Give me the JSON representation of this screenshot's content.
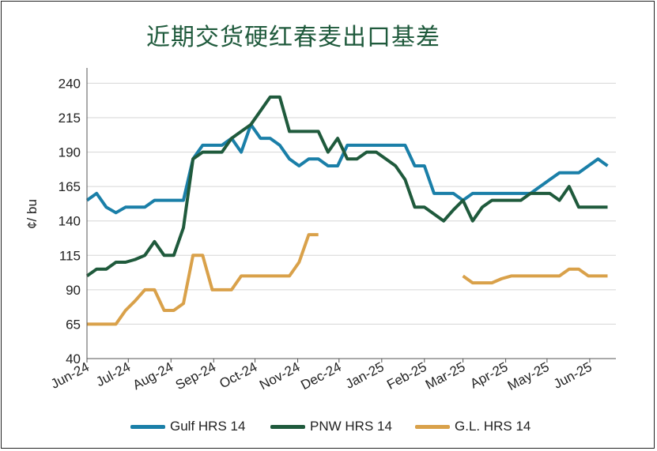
{
  "chart_data": {
    "type": "line",
    "title": "近期交货硬红春麦出口基差",
    "ylabel": "¢/ bu",
    "ylim": [
      40,
      250
    ],
    "yticks": [
      40,
      65,
      90,
      115,
      140,
      165,
      190,
      215,
      240
    ],
    "xlim": [
      "2024-06-01",
      "2025-06-20"
    ],
    "xticks": [
      {
        "label": "Jun-24",
        "date": "2024-06-01"
      },
      {
        "label": "Jul-24",
        "date": "2024-07-01"
      },
      {
        "label": "Aug-24",
        "date": "2024-08-01"
      },
      {
        "label": "Sep-24",
        "date": "2024-09-01"
      },
      {
        "label": "Oct-24",
        "date": "2024-10-01"
      },
      {
        "label": "Nov-24",
        "date": "2024-11-01"
      },
      {
        "label": "Dec-24",
        "date": "2024-12-01"
      },
      {
        "label": "Jan-25",
        "date": "2025-01-01"
      },
      {
        "label": "Feb-25",
        "date": "2025-02-01"
      },
      {
        "label": "Mar-25",
        "date": "2025-03-01"
      },
      {
        "label": "Apr-25",
        "date": "2025-04-01"
      },
      {
        "label": "May-25",
        "date": "2025-05-01"
      },
      {
        "label": "Jun-25",
        "date": "2025-06-01"
      }
    ],
    "grid": "horizontal",
    "legend": "bottom",
    "series": [
      {
        "name": "Gulf HRS 14",
        "color": "#1a7fa8",
        "points": [
          [
            "2024-06-01",
            155
          ],
          [
            "2024-06-08",
            160
          ],
          [
            "2024-06-15",
            150
          ],
          [
            "2024-06-22",
            146
          ],
          [
            "2024-06-29",
            150
          ],
          [
            "2024-07-06",
            150
          ],
          [
            "2024-07-13",
            150
          ],
          [
            "2024-07-20",
            155
          ],
          [
            "2024-07-27",
            155
          ],
          [
            "2024-08-03",
            155
          ],
          [
            "2024-08-10",
            155
          ],
          [
            "2024-08-17",
            185
          ],
          [
            "2024-08-24",
            195
          ],
          [
            "2024-08-31",
            195
          ],
          [
            "2024-09-07",
            195
          ],
          [
            "2024-09-14",
            200
          ],
          [
            "2024-09-21",
            190
          ],
          [
            "2024-09-28",
            210
          ],
          [
            "2024-10-05",
            200
          ],
          [
            "2024-10-12",
            200
          ],
          [
            "2024-10-19",
            195
          ],
          [
            "2024-10-26",
            185
          ],
          [
            "2024-11-02",
            180
          ],
          [
            "2024-11-09",
            185
          ],
          [
            "2024-11-16",
            185
          ],
          [
            "2024-11-23",
            180
          ],
          [
            "2024-11-30",
            180
          ],
          [
            "2024-12-07",
            195
          ],
          [
            "2024-12-14",
            195
          ],
          [
            "2024-12-21",
            195
          ],
          [
            "2024-12-28",
            195
          ],
          [
            "2025-01-04",
            195
          ],
          [
            "2025-01-11",
            195
          ],
          [
            "2025-01-18",
            195
          ],
          [
            "2025-01-25",
            180
          ],
          [
            "2025-02-01",
            180
          ],
          [
            "2025-02-08",
            160
          ],
          [
            "2025-02-15",
            160
          ],
          [
            "2025-02-22",
            160
          ],
          [
            "2025-03-01",
            155
          ],
          [
            "2025-03-08",
            160
          ],
          [
            "2025-03-15",
            160
          ],
          [
            "2025-03-22",
            160
          ],
          [
            "2025-03-29",
            160
          ],
          [
            "2025-04-05",
            160
          ],
          [
            "2025-04-12",
            160
          ],
          [
            "2025-04-19",
            160
          ],
          [
            "2025-04-26",
            165
          ],
          [
            "2025-05-03",
            170
          ],
          [
            "2025-05-10",
            175
          ],
          [
            "2025-05-17",
            175
          ],
          [
            "2025-05-24",
            175
          ],
          [
            "2025-05-31",
            180
          ],
          [
            "2025-06-07",
            185
          ],
          [
            "2025-06-14",
            180
          ]
        ]
      },
      {
        "name": "PNW HRS 14",
        "color": "#1f5a3c",
        "points": [
          [
            "2024-06-01",
            100
          ],
          [
            "2024-06-08",
            105
          ],
          [
            "2024-06-15",
            105
          ],
          [
            "2024-06-22",
            110
          ],
          [
            "2024-06-29",
            110
          ],
          [
            "2024-07-06",
            112
          ],
          [
            "2024-07-13",
            115
          ],
          [
            "2024-07-20",
            125
          ],
          [
            "2024-07-27",
            115
          ],
          [
            "2024-08-03",
            115
          ],
          [
            "2024-08-10",
            135
          ],
          [
            "2024-08-17",
            185
          ],
          [
            "2024-08-24",
            190
          ],
          [
            "2024-08-31",
            190
          ],
          [
            "2024-09-07",
            190
          ],
          [
            "2024-09-14",
            200
          ],
          [
            "2024-09-21",
            205
          ],
          [
            "2024-09-28",
            210
          ],
          [
            "2024-10-05",
            220
          ],
          [
            "2024-10-12",
            230
          ],
          [
            "2024-10-19",
            230
          ],
          [
            "2024-10-26",
            205
          ],
          [
            "2024-11-02",
            205
          ],
          [
            "2024-11-09",
            205
          ],
          [
            "2024-11-16",
            205
          ],
          [
            "2024-11-23",
            190
          ],
          [
            "2024-11-30",
            200
          ],
          [
            "2024-12-07",
            185
          ],
          [
            "2024-12-14",
            185
          ],
          [
            "2024-12-21",
            190
          ],
          [
            "2024-12-28",
            190
          ],
          [
            "2025-01-04",
            185
          ],
          [
            "2025-01-11",
            180
          ],
          [
            "2025-01-18",
            170
          ],
          [
            "2025-01-25",
            150
          ],
          [
            "2025-02-01",
            150
          ],
          [
            "2025-02-08",
            145
          ],
          [
            "2025-02-15",
            140
          ],
          [
            "2025-02-22",
            148
          ],
          [
            "2025-03-01",
            155
          ],
          [
            "2025-03-08",
            140
          ],
          [
            "2025-03-15",
            150
          ],
          [
            "2025-03-22",
            155
          ],
          [
            "2025-03-29",
            155
          ],
          [
            "2025-04-05",
            155
          ],
          [
            "2025-04-12",
            155
          ],
          [
            "2025-04-19",
            160
          ],
          [
            "2025-04-26",
            160
          ],
          [
            "2025-05-03",
            160
          ],
          [
            "2025-05-10",
            155
          ],
          [
            "2025-05-17",
            165
          ],
          [
            "2025-05-24",
            150
          ],
          [
            "2025-05-31",
            150
          ],
          [
            "2025-06-07",
            150
          ],
          [
            "2025-06-14",
            150
          ]
        ]
      },
      {
        "name": "G.L. HRS 14",
        "color": "#d9a14a",
        "segments": [
          [
            [
              "2024-06-01",
              65
            ],
            [
              "2024-06-08",
              65
            ],
            [
              "2024-06-15",
              65
            ],
            [
              "2024-06-22",
              65
            ],
            [
              "2024-06-29",
              75
            ],
            [
              "2024-07-06",
              82
            ],
            [
              "2024-07-13",
              90
            ],
            [
              "2024-07-20",
              90
            ],
            [
              "2024-07-27",
              75
            ],
            [
              "2024-08-03",
              75
            ],
            [
              "2024-08-10",
              80
            ],
            [
              "2024-08-17",
              115
            ],
            [
              "2024-08-24",
              115
            ],
            [
              "2024-08-31",
              90
            ],
            [
              "2024-09-07",
              90
            ],
            [
              "2024-09-14",
              90
            ],
            [
              "2024-09-21",
              100
            ],
            [
              "2024-09-28",
              100
            ],
            [
              "2024-10-05",
              100
            ],
            [
              "2024-10-12",
              100
            ],
            [
              "2024-10-19",
              100
            ],
            [
              "2024-10-26",
              100
            ],
            [
              "2024-11-02",
              110
            ],
            [
              "2024-11-09",
              130
            ],
            [
              "2024-11-16",
              130
            ]
          ],
          [
            [
              "2025-03-01",
              100
            ],
            [
              "2025-03-08",
              95
            ],
            [
              "2025-03-15",
              95
            ],
            [
              "2025-03-22",
              95
            ],
            [
              "2025-03-29",
              98
            ],
            [
              "2025-04-05",
              100
            ],
            [
              "2025-04-12",
              100
            ],
            [
              "2025-04-19",
              100
            ],
            [
              "2025-04-26",
              100
            ],
            [
              "2025-05-03",
              100
            ],
            [
              "2025-05-10",
              100
            ],
            [
              "2025-05-17",
              105
            ],
            [
              "2025-05-24",
              105
            ],
            [
              "2025-05-31",
              100
            ],
            [
              "2025-06-07",
              100
            ],
            [
              "2025-06-14",
              100
            ]
          ]
        ]
      }
    ]
  }
}
